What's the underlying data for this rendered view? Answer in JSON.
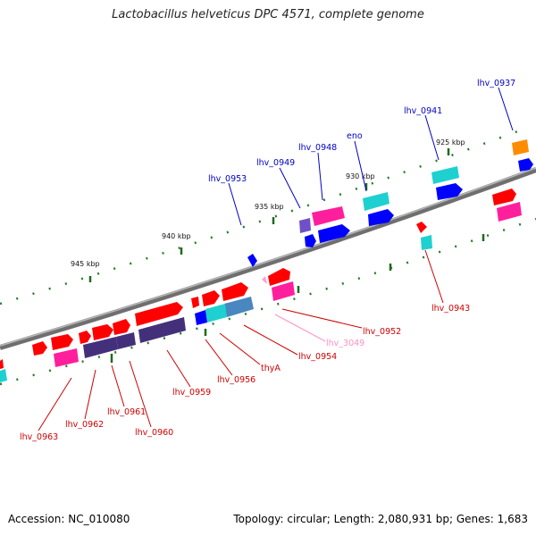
{
  "title": "Lactobacillus helveticus DPC 4571, complete genome",
  "accession": "Accession: NC_010080",
  "topology": "Topology: circular; Length: 2,080,931 bp; Genes: 1,683",
  "kbp_labels": [
    "925 kbp",
    "930 kbp",
    "935 kbp",
    "940 kbp",
    "945 kbp"
  ],
  "colors": {
    "backbone": "#888888",
    "tick": "#2a7a2a",
    "gene_red": "#ff0000",
    "gene_pink": "#ff1f9c",
    "gene_navy": "#44307a",
    "gene_blue": "#0000ff",
    "gene_cyan": "#1fd0d0",
    "gene_steel": "#4a86c0",
    "gene_orange": "#ff8c00",
    "gene_purple": "#7050c8",
    "gene_lightpink": "#ff9fcf",
    "label_blue": "#0000c8",
    "label_red": "#d00000",
    "label_lightpink": "#ff8fc4"
  },
  "genes": [
    {
      "label": "lhv_0937",
      "color": "label_blue"
    },
    {
      "label": "lhv_0941",
      "color": "label_blue"
    },
    {
      "label": "eno",
      "color": "label_blue"
    },
    {
      "label": "lhv_0948",
      "color": "label_blue"
    },
    {
      "label": "lhv_0949",
      "color": "label_blue"
    },
    {
      "label": "lhv_0953",
      "color": "label_blue"
    },
    {
      "label": "lhv_0943",
      "color": "label_red"
    },
    {
      "label": "lhv_0952",
      "color": "label_red"
    },
    {
      "label": "lhv_3049",
      "color": "label_lightpink"
    },
    {
      "label": "lhv_0954",
      "color": "label_red"
    },
    {
      "label": "thyA",
      "color": "label_red"
    },
    {
      "label": "lhv_0956",
      "color": "label_red"
    },
    {
      "label": "lhv_0959",
      "color": "label_red"
    },
    {
      "label": "lhv_0960",
      "color": "label_red"
    },
    {
      "label": "lhv_0961",
      "color": "label_red"
    },
    {
      "label": "lhv_0962",
      "color": "label_red"
    },
    {
      "label": "lhv_0963",
      "color": "label_red"
    }
  ]
}
